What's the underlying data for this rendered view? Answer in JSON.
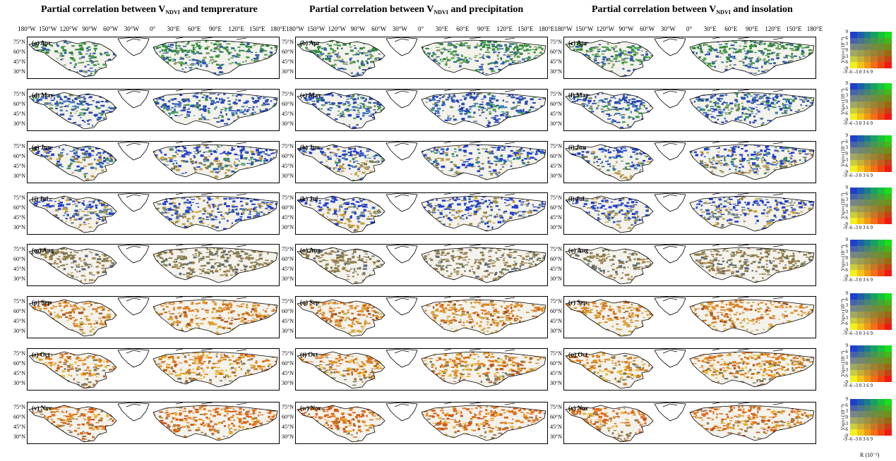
{
  "columns": [
    {
      "title_pre": "Partial correlation between V",
      "title_sub": "NDVI",
      "title_post": " and temprerature"
    },
    {
      "title_pre": "Partial correlation between V",
      "title_sub": "NDVI",
      "title_post": " and precipitation"
    },
    {
      "title_pre": "Partial correlation between V",
      "title_sub": "NDVI",
      "title_post": " and insolation"
    }
  ],
  "lon_ticks": [
    "180°W",
    "150°W",
    "120°W",
    "90°W",
    "60°W",
    "30°W",
    "0°",
    "30°E",
    "60°E",
    "90°E",
    "120°E",
    "150°E",
    "180°E"
  ],
  "lat_ticks": [
    "75°N",
    "60°N",
    "45°N",
    "30°N"
  ],
  "rows": [
    {
      "month": "Apr",
      "labels": [
        "(a)  Apr",
        "(b)  Apr",
        "(c)  Apr"
      ]
    },
    {
      "month": "May",
      "labels": [
        "(d)  May",
        "(e)  May",
        "(f)  May"
      ]
    },
    {
      "month": "Jun",
      "labels": [
        "(g)  Jun",
        "(h)  Jun",
        "(i)  Jun"
      ]
    },
    {
      "month": "Jul",
      "labels": [
        "(j)  Jul",
        "(k)  Jul",
        "(l)  Jul"
      ]
    },
    {
      "month": "Aug",
      "labels": [
        "(m)  Aug",
        "(n)  Aug",
        "(o)  Aug"
      ]
    },
    {
      "month": "Sep",
      "labels": [
        "(p)  Sep",
        "(q)  Sep",
        "(r)  Sep"
      ]
    },
    {
      "month": "Oct",
      "labels": [
        "(s)  Oct",
        "(t)  Oct",
        "(u)  Oct"
      ]
    },
    {
      "month": "Nov",
      "labels": [
        "(v)  Nov",
        "(w)  Nov",
        "(x)  Nov"
      ]
    }
  ],
  "legend": {
    "y_ticks": [
      "9",
      "6",
      "3",
      "0",
      "-3",
      "-6",
      "-9"
    ],
    "x_ticks": "-9 -6 -3 0  3  6  9",
    "v_label": "V",
    "v_label_sub": "NDVI",
    "v_label_unit": "(10⁻²)",
    "r_label": "R (10⁻²)",
    "corner_colors": {
      "top_left": "#1f3fd0",
      "top_right": "#18e01a",
      "bottom_left": "#f4f01a",
      "bottom_right": "#f01a12"
    }
  },
  "month_palettes": {
    "Apr": [
      "#2e8a3a",
      "#4aa84a",
      "#3a6a9a",
      "#8aa06a",
      "#2d56b0"
    ],
    "May": [
      "#2a4db0",
      "#3f7fbf",
      "#3aa04a",
      "#6a8a5a",
      "#1f3fc0"
    ],
    "Jun": [
      "#1f3fd0",
      "#2a66b8",
      "#3a8a6a",
      "#8a7a4a",
      "#c0a050"
    ],
    "Jul": [
      "#1f3fd0",
      "#2a55b8",
      "#6a8a8a",
      "#a08a4a",
      "#c8a040"
    ],
    "Aug": [
      "#8a7a4a",
      "#6a7a5a",
      "#a07a3a",
      "#5a6a7a",
      "#b09060"
    ],
    "Sep": [
      "#e08020",
      "#d06818",
      "#e0a030",
      "#a05020",
      "#d0b050"
    ],
    "Oct": [
      "#e07a1a",
      "#e0a020",
      "#c05a18",
      "#e8c040",
      "#7a7a5a"
    ],
    "Nov": [
      "#e06818",
      "#e08a20",
      "#d05010",
      "#e8b030",
      "#9a7a50"
    ]
  }
}
